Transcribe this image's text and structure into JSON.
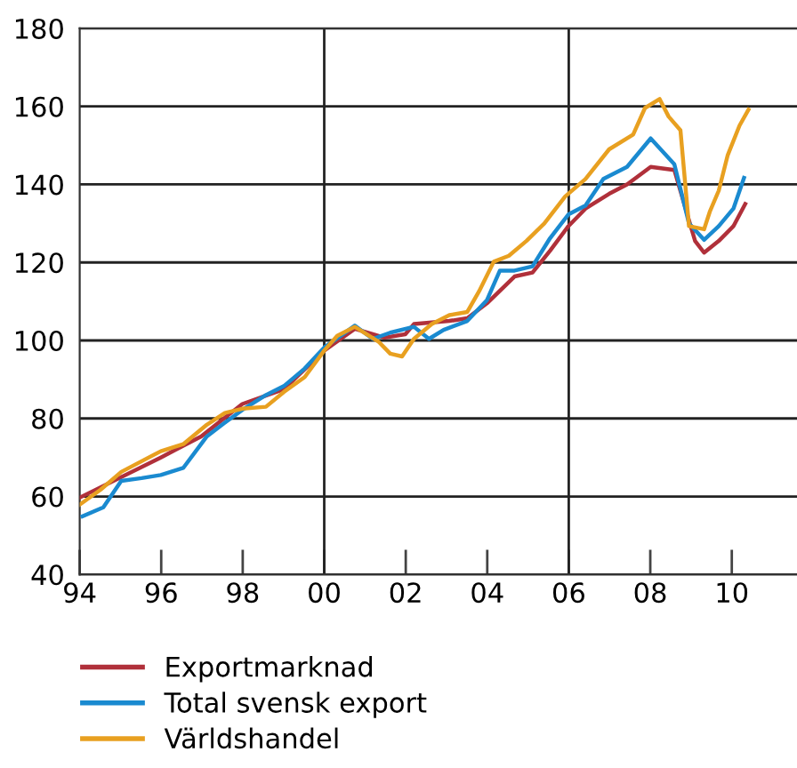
{
  "chart_data": {
    "type": "line",
    "xlim": [
      1994,
      2011.6
    ],
    "ylim": [
      40,
      180
    ],
    "xticks": [
      {
        "value": 1994,
        "label": "94"
      },
      {
        "value": 1996,
        "label": "96"
      },
      {
        "value": 1998,
        "label": "98"
      },
      {
        "value": 2000,
        "label": "00"
      },
      {
        "value": 2002,
        "label": "02"
      },
      {
        "value": 2004,
        "label": "04"
      },
      {
        "value": 2006,
        "label": "06"
      },
      {
        "value": 2008,
        "label": "08"
      },
      {
        "value": 2010,
        "label": "10"
      }
    ],
    "yticks": [
      40,
      60,
      80,
      100,
      120,
      140,
      160,
      180
    ],
    "grid": "y",
    "legend": "bottom",
    "marker": "none",
    "line_style": "solid",
    "ref_lines": [
      {
        "axis": "x",
        "value": 2000,
        "color": "#222222"
      },
      {
        "axis": "x",
        "value": 2006,
        "color": "#222222"
      }
    ],
    "series": [
      {
        "name": "Exportmarknad",
        "color": "#b0303a",
        "x": [
          1994.0,
          1995.99,
          1996.98,
          1997.99,
          1999.01,
          2000.0,
          2000.75,
          2001.48,
          2001.99,
          2002.2,
          2003.07,
          2003.51,
          2003.99,
          2004.67,
          2005.11,
          2005.54,
          2005.99,
          2006.41,
          2006.99,
          2007.43,
          2008.01,
          2008.59,
          2008.95,
          2009.1,
          2009.32,
          2009.68,
          2010.04,
          2010.33
        ],
        "values": [
          59.7,
          70,
          75.4,
          83.7,
          87.5,
          97.4,
          103,
          100.7,
          101.6,
          104.2,
          105,
          105.7,
          109.5,
          116.4,
          117.4,
          123,
          129.3,
          133.8,
          137.6,
          140,
          144.5,
          143.7,
          130.8,
          125.5,
          122.5,
          125.5,
          129.3,
          135
        ]
      },
      {
        "name": "Total svensk export",
        "color": "#1a8ad0",
        "x": [
          1994.07,
          1994.58,
          1995.02,
          1995.52,
          1995.99,
          1996.54,
          1997.12,
          1997.56,
          1997.99,
          1998.57,
          1999.01,
          1999.52,
          2000.0,
          2000.75,
          2001.19,
          2001.62,
          2002.2,
          2002.57,
          2002.93,
          2003.51,
          2003.99,
          2004.31,
          2004.67,
          2005.11,
          2005.54,
          2005.99,
          2006.41,
          2006.85,
          2007.43,
          2008.01,
          2008.59,
          2008.95,
          2009.32,
          2009.68,
          2010.04,
          2010.3
        ],
        "values": [
          54.9,
          57.2,
          64,
          64.7,
          65.5,
          67.3,
          75.4,
          78.9,
          82.2,
          86,
          88.3,
          92.8,
          98.2,
          103.8,
          100.4,
          102,
          103.5,
          100.4,
          102.7,
          105,
          110.3,
          117.9,
          117.9,
          119,
          126.2,
          132.3,
          134.6,
          141.4,
          144.5,
          151.8,
          145.2,
          130,
          125.8,
          129.3,
          133.8,
          141.7
        ]
      },
      {
        "name": "Världshandel",
        "color": "#e8a020",
        "x": [
          1994.0,
          1994.51,
          1995.02,
          1995.99,
          1996.54,
          1997.12,
          1997.56,
          1997.99,
          1998.57,
          1999.01,
          1999.52,
          2000.0,
          2000.32,
          2000.75,
          2001.33,
          2001.62,
          2001.91,
          2002.2,
          2002.64,
          2003.07,
          2003.51,
          2003.8,
          2004.16,
          2004.53,
          2004.96,
          2005.4,
          2005.91,
          2006.41,
          2006.99,
          2007.58,
          2007.87,
          2008.23,
          2008.45,
          2008.74,
          2008.95,
          2009.32,
          2009.46,
          2009.68,
          2009.9,
          2010.19,
          2010.41
        ],
        "values": [
          57.9,
          61.7,
          66.3,
          71.6,
          73.4,
          78.4,
          81.4,
          82.5,
          83,
          86.8,
          90.6,
          97.4,
          101.2,
          103.5,
          99.7,
          96.6,
          95.9,
          100.4,
          104.2,
          106.5,
          107.3,
          112.6,
          120.2,
          121.7,
          125.5,
          130,
          136.9,
          141.4,
          149,
          152.8,
          159.6,
          161.9,
          157.4,
          153.9,
          129.3,
          128.5,
          133,
          138.4,
          147.5,
          155.1,
          159.2
        ]
      }
    ]
  }
}
